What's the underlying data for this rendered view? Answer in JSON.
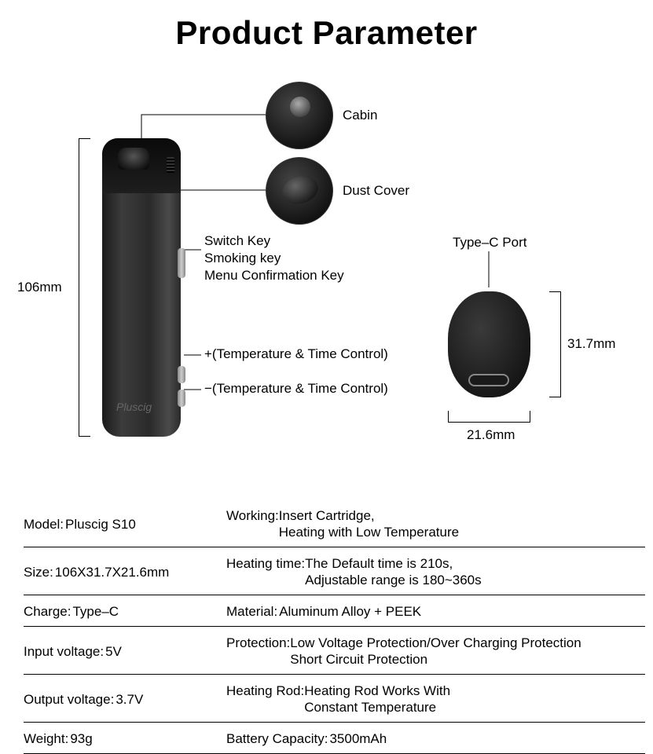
{
  "title": "Product Parameter",
  "dimensions": {
    "height": "106mm",
    "depth": "31.7mm",
    "width": "21.6mm"
  },
  "callouts": {
    "cabin": "Cabin",
    "dust_cover": "Dust Cover",
    "switch_key_l1": "Switch Key",
    "switch_key_l2": "Smoking key",
    "switch_key_l3": "Menu Confirmation Key",
    "plus_control": "+(Temperature & Time Control)",
    "minus_control": "−(Temperature & Time Control)",
    "typec": "Type–C Port"
  },
  "logo": "Pluscig",
  "specs": [
    {
      "left_label": "Model:",
      "left_value": "Pluscig  S10",
      "right_label": "Working:",
      "right_value": "Insert Cartridge,\nHeating with Low Temperature"
    },
    {
      "left_label": "Size:",
      "left_value": "106X31.7X21.6mm",
      "right_label": "Heating time:",
      "right_value": "The Default time is 210s,\nAdjustable range is 180~360s"
    },
    {
      "left_label": "Charge:",
      "left_value": "Type–C",
      "right_label": "Material:",
      "right_value": "Aluminum Alloy + PEEK"
    },
    {
      "left_label": "Input voltage:",
      "left_value": "5V",
      "right_label": "Protection:",
      "right_value": "Low Voltage Protection/Over Charging Protection\nShort Circuit Protection"
    },
    {
      "left_label": "Output voltage:",
      "left_value": "3.7V",
      "right_label": "Heating Rod:",
      "right_value": "Heating Rod Works With\nConstant Temperature"
    },
    {
      "left_label": "Weight:",
      "left_value": "93g",
      "right_label": "Battery Capacity:",
      "right_value": "3500mAh"
    }
  ]
}
